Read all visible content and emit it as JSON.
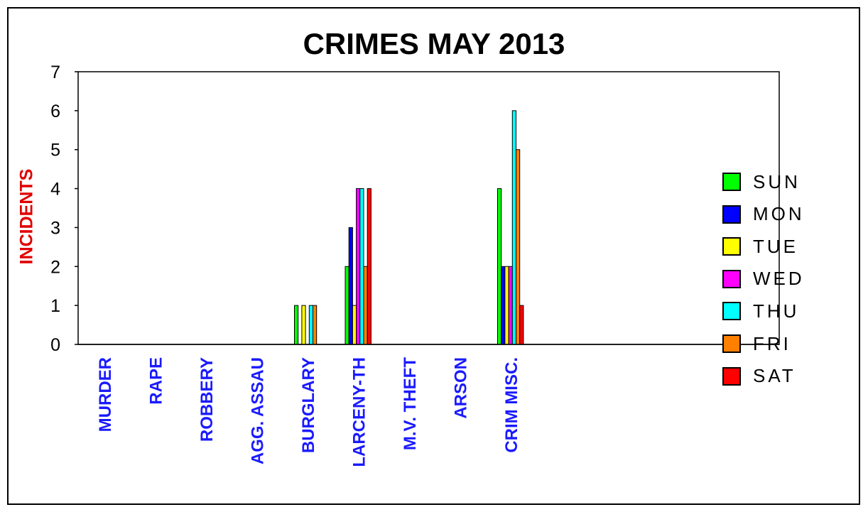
{
  "chart_data": {
    "type": "bar",
    "title": "CRIMES MAY 2013",
    "xlabel": "",
    "ylabel": "INCIDENTS",
    "ylim": [
      0,
      7
    ],
    "yticks": [
      "0",
      "1",
      "2",
      "3",
      "4",
      "5",
      "6",
      "7"
    ],
    "grid": false,
    "legend_position": "right",
    "categories": [
      "MURDER",
      "RAPE",
      "ROBBERY",
      "AGG. ASSAU",
      "BURGLARY",
      "LARCENY-TH",
      "M.V. THEFT",
      "ARSON",
      "CRIM MISC."
    ],
    "series": [
      {
        "name": "SUN",
        "color": "#00ff00",
        "values": [
          0,
          0,
          0,
          0,
          1,
          2,
          0,
          0,
          4
        ]
      },
      {
        "name": "MON",
        "color": "#0000ff",
        "values": [
          0,
          0,
          0,
          0,
          0,
          3,
          0,
          0,
          2
        ]
      },
      {
        "name": "TUE",
        "color": "#ffff00",
        "values": [
          0,
          0,
          0,
          0,
          1,
          1,
          0,
          0,
          2
        ]
      },
      {
        "name": "WED",
        "color": "#ff00ff",
        "values": [
          0,
          0,
          0,
          0,
          0,
          4,
          0,
          0,
          2
        ]
      },
      {
        "name": "THU",
        "color": "#00ffff",
        "values": [
          0,
          0,
          0,
          0,
          1,
          4,
          0,
          0,
          6
        ]
      },
      {
        "name": "FRI",
        "color": "#ff8000",
        "values": [
          0,
          0,
          0,
          0,
          1,
          2,
          0,
          0,
          5
        ]
      },
      {
        "name": "SAT",
        "color": "#ff0000",
        "values": [
          0,
          0,
          0,
          0,
          0,
          4,
          0,
          0,
          1
        ]
      }
    ],
    "category_label_color": "#1a1aff",
    "ylabel_color": "#e00000"
  }
}
